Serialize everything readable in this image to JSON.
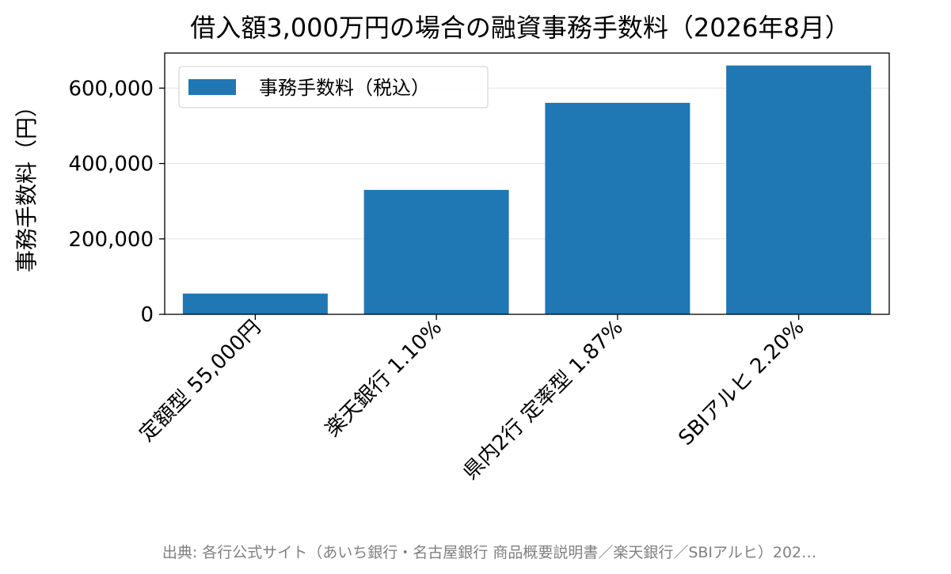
{
  "chart_data": {
    "type": "bar",
    "title": "借入額3,000万円の場合の融資事務手数料（2026年8月）",
    "xlabel": "",
    "ylabel": "事務手数料（円）",
    "categories": [
      "定額型 55,000円",
      "楽天銀行 1.10%",
      "県内2行 定率型 1.87%",
      "SBIアルヒ 2.20%"
    ],
    "series": [
      {
        "name": "事務手数料（税込）",
        "values": [
          55000,
          330000,
          561000,
          660000
        ],
        "color": "#1f77b4"
      }
    ],
    "ylim": [
      0,
      693000
    ],
    "yticks": [
      0,
      200000,
      400000,
      600000
    ],
    "ytick_labels": [
      "0",
      "200,000",
      "400,000",
      "600,000"
    ],
    "grid": "y",
    "legend": "top-left"
  },
  "source_note": "出典: 各行公式サイト（あいち銀行・名古屋銀行 商品概要説明書／楽天銀行／SBIアルヒ）202…"
}
